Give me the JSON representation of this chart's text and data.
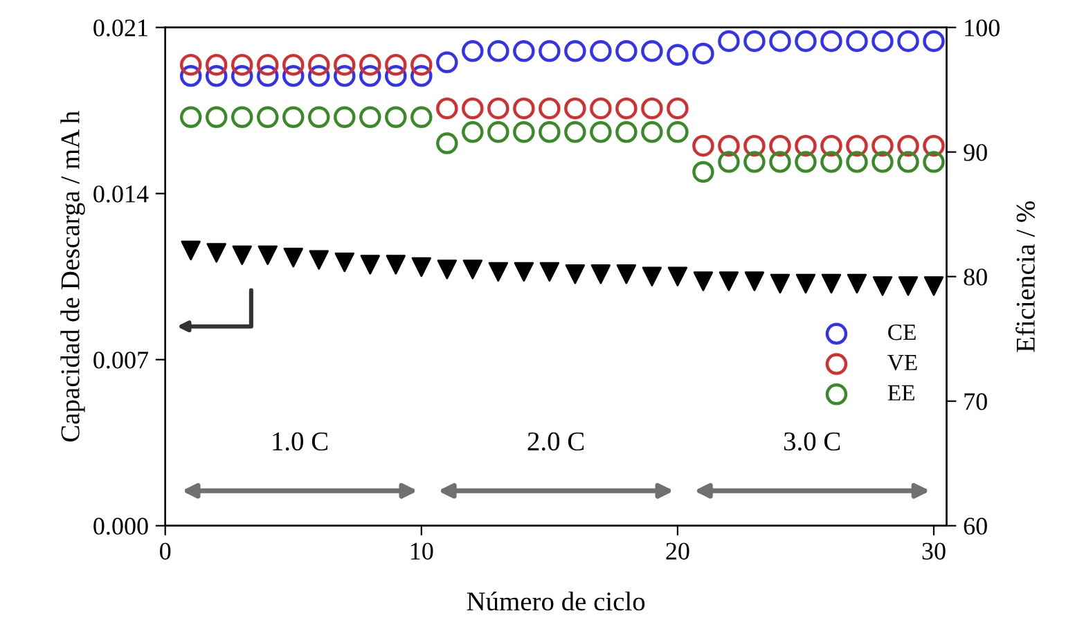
{
  "chart_data": {
    "type": "scatter",
    "xlabel": "Número de ciclo",
    "ylabel": "Capacidad de Descarga / mA h",
    "y2label": "Eficiencia / %",
    "x": [
      1,
      2,
      3,
      4,
      5,
      6,
      7,
      8,
      9,
      10,
      11,
      12,
      13,
      14,
      15,
      16,
      17,
      18,
      19,
      20,
      21,
      22,
      23,
      24,
      25,
      26,
      27,
      28,
      29,
      30
    ],
    "series": [
      {
        "color": "#000000",
        "marker": "triangle",
        "values": [
          0.0116,
          0.0115,
          0.0114,
          0.0114,
          0.0113,
          0.0112,
          0.0111,
          0.011,
          0.011,
          0.0109,
          0.0108,
          0.0108,
          0.0107,
          0.0107,
          0.0107,
          0.0106,
          0.0106,
          0.0106,
          0.0105,
          0.0105,
          0.0103,
          0.0103,
          0.0103,
          0.0102,
          0.0102,
          0.0102,
          0.0102,
          0.0101,
          0.0101,
          0.0101
        ]
      },
      {
        "name": "CE",
        "color": "#3333ee",
        "marker": "circle",
        "axis": "y2",
        "values": [
          96.1,
          96.1,
          96.1,
          96.1,
          96.1,
          96.1,
          96.1,
          96.1,
          96.1,
          96.1,
          97.2,
          98.1,
          98.1,
          98.1,
          98.1,
          98.1,
          98.1,
          98.1,
          98.1,
          97.8,
          97.9,
          98.9,
          98.9,
          98.9,
          98.9,
          98.9,
          98.9,
          98.9,
          98.9,
          98.9
        ]
      },
      {
        "name": "VE",
        "color": "#d03030",
        "marker": "circle",
        "axis": "y2",
        "values": [
          97.0,
          97.0,
          97.0,
          97.0,
          97.0,
          97.0,
          97.0,
          97.0,
          97.0,
          97.0,
          93.5,
          93.5,
          93.5,
          93.5,
          93.5,
          93.5,
          93.5,
          93.5,
          93.5,
          93.5,
          90.5,
          90.5,
          90.5,
          90.5,
          90.5,
          90.5,
          90.5,
          90.5,
          90.5,
          90.5
        ]
      },
      {
        "name": "EE",
        "color": "#3a8a2a",
        "marker": "circle",
        "axis": "y2",
        "values": [
          92.8,
          92.8,
          92.8,
          92.8,
          92.8,
          92.8,
          92.8,
          92.8,
          92.8,
          92.8,
          90.7,
          91.6,
          91.6,
          91.6,
          91.6,
          91.6,
          91.6,
          91.6,
          91.6,
          91.6,
          88.4,
          89.2,
          89.2,
          89.2,
          89.2,
          89.2,
          89.2,
          89.2,
          89.2,
          89.2
        ]
      }
    ],
    "xlim": [
      0,
      30.5
    ],
    "xticks": [
      0,
      10,
      20,
      30
    ],
    "ylim": [
      0,
      0.021
    ],
    "yticks": [
      {
        "value": 0,
        "label": "0.000"
      },
      0.007,
      0.014,
      0.021
    ],
    "y2lim": [
      60,
      100
    ],
    "y2ticks": [
      60,
      70,
      80,
      90,
      100
    ],
    "annotations": [
      "1.0 C",
      "2.0 C",
      "3.0 C"
    ],
    "legend": "lower right",
    "grid": false
  }
}
